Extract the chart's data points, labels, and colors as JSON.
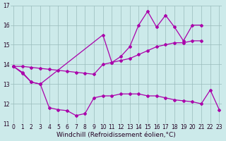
{
  "series1_x": [
    0,
    1,
    2,
    3,
    10,
    11,
    12,
    13,
    14,
    15,
    16,
    17,
    18,
    19,
    20,
    21
  ],
  "series1_y": [
    13.9,
    13.6,
    13.1,
    13.0,
    15.5,
    14.1,
    14.4,
    14.9,
    16.0,
    16.7,
    15.9,
    16.5,
    15.9,
    15.2,
    16.0,
    16.0
  ],
  "series2_x": [
    0,
    1,
    2,
    3,
    4,
    5,
    6,
    7,
    8,
    9,
    10,
    11,
    12,
    13,
    14,
    15,
    16,
    17,
    18,
    19,
    20,
    21
  ],
  "series2_y": [
    13.9,
    13.9,
    13.85,
    13.8,
    13.75,
    13.7,
    13.65,
    13.6,
    13.55,
    13.5,
    14.0,
    14.1,
    14.2,
    14.3,
    14.5,
    14.7,
    14.9,
    15.0,
    15.1,
    15.1,
    15.2,
    15.2
  ],
  "series3_x": [
    0,
    1,
    2,
    3,
    4,
    5,
    6,
    7,
    8,
    9,
    10,
    11,
    12,
    13,
    14,
    15,
    16,
    17,
    18,
    19,
    20,
    21,
    22,
    23
  ],
  "series3_y": [
    13.9,
    13.55,
    13.1,
    13.0,
    11.8,
    11.7,
    11.65,
    11.4,
    11.5,
    12.3,
    12.4,
    12.4,
    12.5,
    12.5,
    12.5,
    12.4,
    12.4,
    12.3,
    12.2,
    12.15,
    12.1,
    12.0,
    12.7,
    11.7
  ],
  "line_color": "#aa00aa",
  "bg_color": "#cceaea",
  "grid_color": "#99bbbb",
  "ylim": [
    11,
    17
  ],
  "xlim": [
    -0.3,
    23.3
  ],
  "yticks": [
    11,
    12,
    13,
    14,
    15,
    16,
    17
  ],
  "xticks": [
    0,
    1,
    2,
    3,
    4,
    5,
    6,
    7,
    8,
    9,
    10,
    11,
    12,
    13,
    14,
    15,
    16,
    17,
    18,
    19,
    20,
    21,
    22,
    23
  ],
  "xlabel": "Windchill (Refroidissement éolien,°C)",
  "xlabel_fontsize": 6.5,
  "tick_fontsize": 5.5,
  "marker": "D",
  "markersize": 2.0,
  "linewidth": 0.9
}
